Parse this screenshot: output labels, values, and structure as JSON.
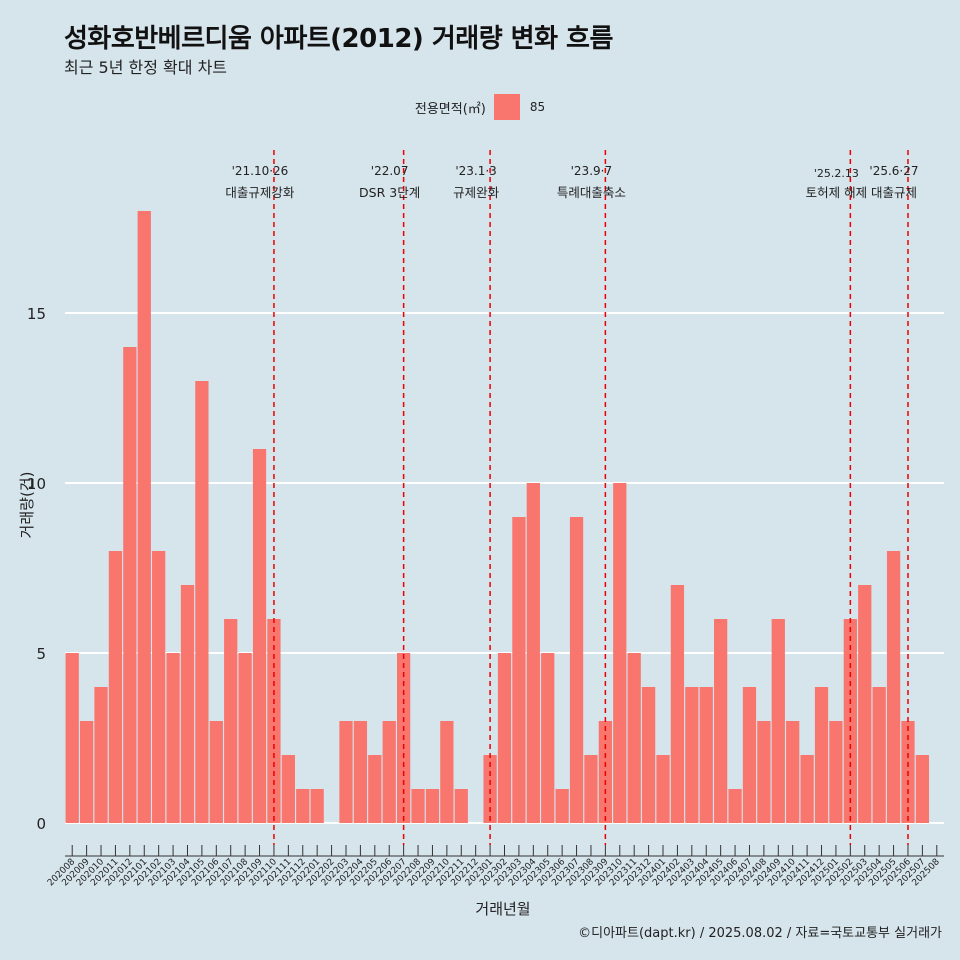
{
  "title": "성화호반베르디움 아파트(2012) 거래량 변화 흐름",
  "subtitle": "최근 5년 한정 확대 차트",
  "caption": "©디아파트(dapt.kr) / 2025.08.02 / 자료=국토교통부 실거래가",
  "legend": {
    "title": "전용면적(㎡)",
    "label": "85",
    "color": "#f8766d"
  },
  "colors": {
    "background": "#d6e4ec",
    "bar": "#f8766d",
    "gridline": "#ffffff",
    "eventline": "#ee0000"
  },
  "chart_data": {
    "type": "bar",
    "xlabel": "거래년월",
    "ylabel": "거래량(건)",
    "ylim": [
      0,
      18
    ],
    "yticks": [
      0,
      5,
      10,
      15
    ],
    "grid": true,
    "legend_position": "top",
    "categories": [
      "202008",
      "202009",
      "202010",
      "202011",
      "202012",
      "202101",
      "202102",
      "202103",
      "202104",
      "202105",
      "202106",
      "202107",
      "202108",
      "202109",
      "202110",
      "202111",
      "202112",
      "202201",
      "202202",
      "202203",
      "202204",
      "202205",
      "202206",
      "202207",
      "202208",
      "202209",
      "202210",
      "202211",
      "202212",
      "202301",
      "202302",
      "202303",
      "202304",
      "202305",
      "202306",
      "202307",
      "202308",
      "202309",
      "202310",
      "202311",
      "202312",
      "202401",
      "202402",
      "202403",
      "202404",
      "202405",
      "202406",
      "202407",
      "202408",
      "202409",
      "202410",
      "202411",
      "202412",
      "202501",
      "202502",
      "202503",
      "202504",
      "202505",
      "202506",
      "202507",
      "202508"
    ],
    "series": [
      {
        "name": "85",
        "values": [
          5,
          3,
          4,
          8,
          14,
          18,
          8,
          5,
          7,
          13,
          3,
          6,
          5,
          11,
          6,
          2,
          1,
          1,
          0,
          3,
          3,
          2,
          3,
          5,
          1,
          1,
          3,
          1,
          0,
          2,
          5,
          9,
          10,
          5,
          1,
          9,
          2,
          3,
          10,
          5,
          4,
          2,
          7,
          4,
          4,
          6,
          1,
          4,
          3,
          6,
          3,
          2,
          4,
          3,
          6,
          7,
          4,
          8,
          3,
          2,
          0
        ]
      }
    ],
    "annotations": [
      {
        "at": "202110",
        "date": "'21.10·26",
        "text": "대출규제강화"
      },
      {
        "at": "202207",
        "date": "'22.07",
        "text": "DSR 3단계"
      },
      {
        "at": "202301",
        "date": "'23.1·3",
        "text": "규제완화"
      },
      {
        "at": "202309",
        "date": "'23.9·7",
        "text": "특례대출축소"
      },
      {
        "at": "202502",
        "date": "'25.2.13",
        "text": "토허제 해제"
      },
      {
        "at": "202506",
        "date": "'25.6·27",
        "text": "대출규제"
      }
    ]
  }
}
